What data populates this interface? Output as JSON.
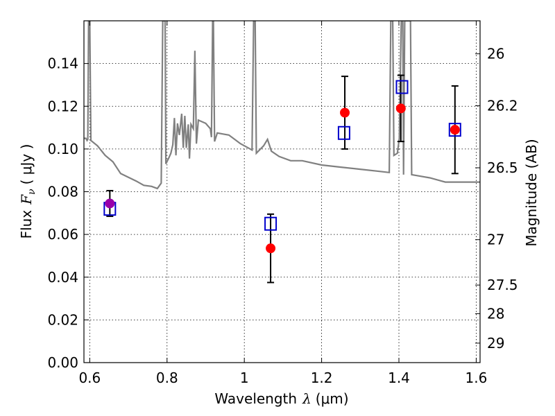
{
  "chart_data": {
    "type": "scatter",
    "xlabel_text": "Wavelength",
    "xlabel_symbol": "λ",
    "xlabel_unit": "(μm)",
    "ylabel_text": "Flux",
    "ylabel_symbol": "F",
    "ylabel_sub": "ν",
    "ylabel_unit": "( μJy )",
    "y2label": "Magnitude (AB)",
    "xlim": [
      0.585,
      1.61
    ],
    "ylim": [
      0.0,
      0.16
    ],
    "x_ticks": [
      {
        "value": 0.6,
        "label": "0.6"
      },
      {
        "value": 0.8,
        "label": "0.8"
      },
      {
        "value": 1.0,
        "label": "1"
      },
      {
        "value": 1.2,
        "label": "1.2"
      },
      {
        "value": 1.4,
        "label": "1.4"
      },
      {
        "value": 1.6,
        "label": "1.6"
      }
    ],
    "y_ticks": [
      {
        "value": 0.0,
        "label": "0.00"
      },
      {
        "value": 0.02,
        "label": "0.02"
      },
      {
        "value": 0.04,
        "label": "0.04"
      },
      {
        "value": 0.06,
        "label": "0.06"
      },
      {
        "value": 0.08,
        "label": "0.08"
      },
      {
        "value": 0.1,
        "label": "0.10"
      },
      {
        "value": 0.12,
        "label": "0.12"
      },
      {
        "value": 0.14,
        "label": "0.14"
      }
    ],
    "magnitude_ticks": [
      {
        "mag": 26,
        "label": "26"
      },
      {
        "mag": 26.2,
        "label": "26.2"
      },
      {
        "mag": 26.5,
        "label": "26.5"
      },
      {
        "mag": 27,
        "label": "27"
      },
      {
        "mag": 27.5,
        "label": "27.5"
      },
      {
        "mag": 28,
        "label": "28"
      },
      {
        "mag": 29,
        "label": "29"
      }
    ],
    "observed": [
      {
        "x": 0.652,
        "y": 0.0745,
        "err_low": 0.0685,
        "err_high": 0.0805,
        "color": "#9900aa"
      },
      {
        "x": 1.068,
        "y": 0.0535,
        "err_low": 0.0375,
        "err_high": 0.0695,
        "color": "#ff0000"
      },
      {
        "x": 1.26,
        "y": 0.117,
        "err_low": 0.1,
        "err_high": 0.134,
        "color": "#ff0000"
      },
      {
        "x": 1.405,
        "y": 0.119,
        "err_low": 0.1035,
        "err_high": 0.1345,
        "color": "#ff0000"
      },
      {
        "x": 1.545,
        "y": 0.109,
        "err_low": 0.0885,
        "err_high": 0.1295,
        "color": "#ff0000"
      }
    ],
    "model_photometry": [
      {
        "x": 0.652,
        "y": 0.072
      },
      {
        "x": 1.068,
        "y": 0.065
      },
      {
        "x": 1.258,
        "y": 0.1075
      },
      {
        "x": 1.408,
        "y": 0.129
      },
      {
        "x": 1.545,
        "y": 0.109
      }
    ],
    "model_spectrum": [
      [
        0.585,
        0.105
      ],
      [
        0.59,
        0.105
      ],
      [
        0.593,
        0.104
      ],
      [
        0.595,
        0.1045
      ],
      [
        0.597,
        0.16
      ],
      [
        0.6,
        0.16
      ],
      [
        0.603,
        0.104
      ],
      [
        0.62,
        0.1015
      ],
      [
        0.64,
        0.097
      ],
      [
        0.66,
        0.094
      ],
      [
        0.68,
        0.0885
      ],
      [
        0.72,
        0.085
      ],
      [
        0.74,
        0.083
      ],
      [
        0.76,
        0.0825
      ],
      [
        0.775,
        0.0815
      ],
      [
        0.785,
        0.084
      ],
      [
        0.789,
        0.16
      ],
      [
        0.795,
        0.16
      ],
      [
        0.797,
        0.093
      ],
      [
        0.805,
        0.096
      ],
      [
        0.81,
        0.098
      ],
      [
        0.815,
        0.102
      ],
      [
        0.819,
        0.1145
      ],
      [
        0.823,
        0.097
      ],
      [
        0.827,
        0.112
      ],
      [
        0.832,
        0.1065
      ],
      [
        0.838,
        0.1165
      ],
      [
        0.842,
        0.1005
      ],
      [
        0.846,
        0.1155
      ],
      [
        0.85,
        0.1005
      ],
      [
        0.855,
        0.1115
      ],
      [
        0.858,
        0.0955
      ],
      [
        0.862,
        0.1115
      ],
      [
        0.868,
        0.1095
      ],
      [
        0.872,
        0.146
      ],
      [
        0.876,
        0.1025
      ],
      [
        0.881,
        0.1135
      ],
      [
        0.9,
        0.112
      ],
      [
        0.912,
        0.1095
      ],
      [
        0.915,
        0.1055
      ],
      [
        0.918,
        0.16
      ],
      [
        0.92,
        0.16
      ],
      [
        0.923,
        0.1035
      ],
      [
        0.93,
        0.1075
      ],
      [
        0.945,
        0.107
      ],
      [
        0.96,
        0.1065
      ],
      [
        0.975,
        0.1045
      ],
      [
        0.99,
        0.1025
      ],
      [
        1.01,
        0.1005
      ],
      [
        1.02,
        0.0995
      ],
      [
        1.024,
        0.16
      ],
      [
        1.028,
        0.16
      ],
      [
        1.031,
        0.098
      ],
      [
        1.05,
        0.1015
      ],
      [
        1.06,
        0.1045
      ],
      [
        1.07,
        0.099
      ],
      [
        1.09,
        0.0965
      ],
      [
        1.12,
        0.0945
      ],
      [
        1.15,
        0.0945
      ],
      [
        1.2,
        0.0925
      ],
      [
        1.25,
        0.0915
      ],
      [
        1.3,
        0.0905
      ],
      [
        1.35,
        0.0895
      ],
      [
        1.375,
        0.089
      ],
      [
        1.379,
        0.16
      ],
      [
        1.384,
        0.16
      ],
      [
        1.387,
        0.097
      ],
      [
        1.396,
        0.098
      ],
      [
        1.401,
        0.105
      ],
      [
        1.406,
        0.16
      ],
      [
        1.41,
        0.16
      ],
      [
        1.412,
        0.088
      ],
      [
        1.415,
        0.16
      ],
      [
        1.43,
        0.16
      ],
      [
        1.433,
        0.088
      ],
      [
        1.48,
        0.0865
      ],
      [
        1.52,
        0.0845
      ],
      [
        1.56,
        0.0845
      ],
      [
        1.61,
        0.0845
      ]
    ],
    "grid": true,
    "model_line_color": "#808080",
    "model_marker_color": "#0000cc"
  }
}
